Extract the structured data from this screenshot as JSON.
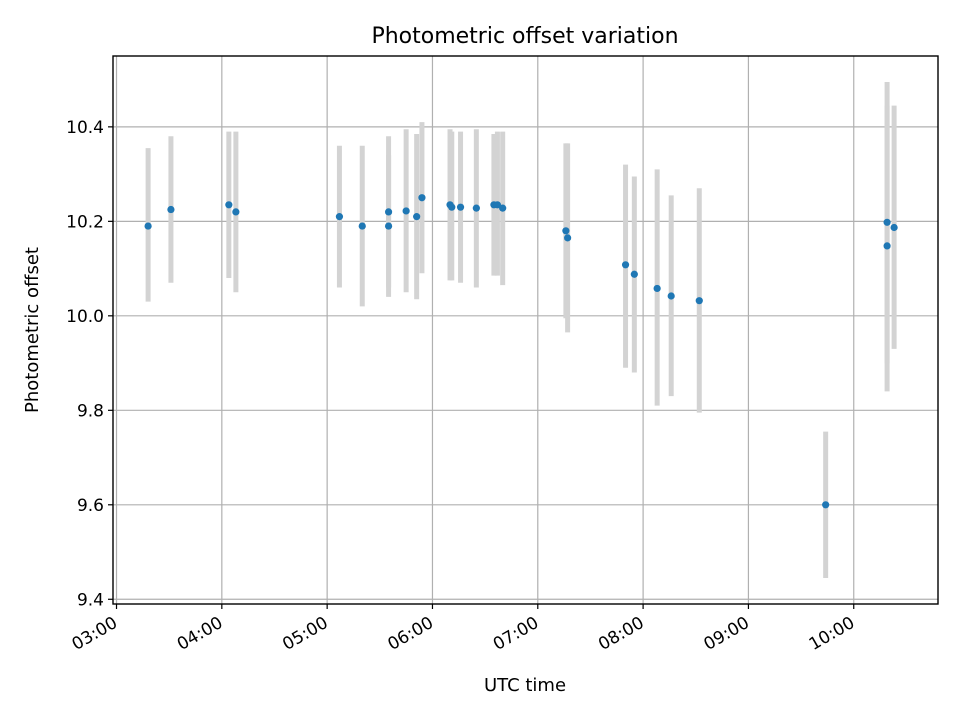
{
  "chart_data": {
    "type": "scatter",
    "title": "Photometric offset variation",
    "xlabel": "UTC time",
    "ylabel": "Photometric offset",
    "x_tick_labels": [
      "03:00",
      "04:00",
      "05:00",
      "06:00",
      "07:00",
      "08:00",
      "09:00",
      "10:00"
    ],
    "y_tick_labels": [
      "9.4",
      "9.6",
      "9.8",
      "10.0",
      "10.2",
      "10.4"
    ],
    "xlim": [
      "02:58",
      "10:48"
    ],
    "ylim": [
      9.39,
      10.55
    ],
    "grid": true,
    "colors": {
      "point": "#1f77b4",
      "errorbar": "#d3d3d3"
    },
    "points": [
      {
        "x": "03:18",
        "y": 10.19,
        "lo": 10.03,
        "hi": 10.355
      },
      {
        "x": "03:31",
        "y": 10.225,
        "lo": 10.07,
        "hi": 10.38
      },
      {
        "x": "04:04",
        "y": 10.235,
        "lo": 10.08,
        "hi": 10.39
      },
      {
        "x": "04:08",
        "y": 10.22,
        "lo": 10.05,
        "hi": 10.39
      },
      {
        "x": "05:07",
        "y": 10.21,
        "lo": 10.06,
        "hi": 10.36
      },
      {
        "x": "05:20",
        "y": 10.19,
        "lo": 10.02,
        "hi": 10.36
      },
      {
        "x": "05:35",
        "y": 10.19,
        "lo": 10.04,
        "hi": 10.34
      },
      {
        "x": "05:35",
        "y": 10.22,
        "lo": 10.06,
        "hi": 10.38
      },
      {
        "x": "05:45",
        "y": 10.222,
        "lo": 10.05,
        "hi": 10.395
      },
      {
        "x": "05:51",
        "y": 10.21,
        "lo": 10.035,
        "hi": 10.385
      },
      {
        "x": "05:54",
        "y": 10.25,
        "lo": 10.09,
        "hi": 10.41
      },
      {
        "x": "06:10",
        "y": 10.235,
        "lo": 10.075,
        "hi": 10.395
      },
      {
        "x": "06:11",
        "y": 10.23,
        "lo": 10.075,
        "hi": 10.39
      },
      {
        "x": "06:16",
        "y": 10.23,
        "lo": 10.07,
        "hi": 10.39
      },
      {
        "x": "06:25",
        "y": 10.228,
        "lo": 10.06,
        "hi": 10.395
      },
      {
        "x": "06:35",
        "y": 10.235,
        "lo": 10.085,
        "hi": 10.385
      },
      {
        "x": "06:37",
        "y": 10.235,
        "lo": 10.085,
        "hi": 10.39
      },
      {
        "x": "06:40",
        "y": 10.228,
        "lo": 10.065,
        "hi": 10.39
      },
      {
        "x": "07:16",
        "y": 10.18,
        "lo": 9.995,
        "hi": 10.365
      },
      {
        "x": "07:17",
        "y": 10.165,
        "lo": 9.965,
        "hi": 10.365
      },
      {
        "x": "07:50",
        "y": 10.108,
        "lo": 9.89,
        "hi": 10.32
      },
      {
        "x": "07:55",
        "y": 10.088,
        "lo": 9.88,
        "hi": 10.295
      },
      {
        "x": "08:08",
        "y": 10.058,
        "lo": 9.81,
        "hi": 10.31
      },
      {
        "x": "08:16",
        "y": 10.042,
        "lo": 9.83,
        "hi": 10.255
      },
      {
        "x": "08:32",
        "y": 10.032,
        "lo": 9.795,
        "hi": 10.27
      },
      {
        "x": "09:44",
        "y": 9.6,
        "lo": 9.445,
        "hi": 9.755
      },
      {
        "x": "10:19",
        "y": 10.148,
        "lo": 9.84,
        "hi": 10.445
      },
      {
        "x": "10:19",
        "y": 10.198,
        "lo": 9.9,
        "hi": 10.495
      },
      {
        "x": "10:23",
        "y": 10.187,
        "lo": 9.93,
        "hi": 10.445
      }
    ]
  }
}
